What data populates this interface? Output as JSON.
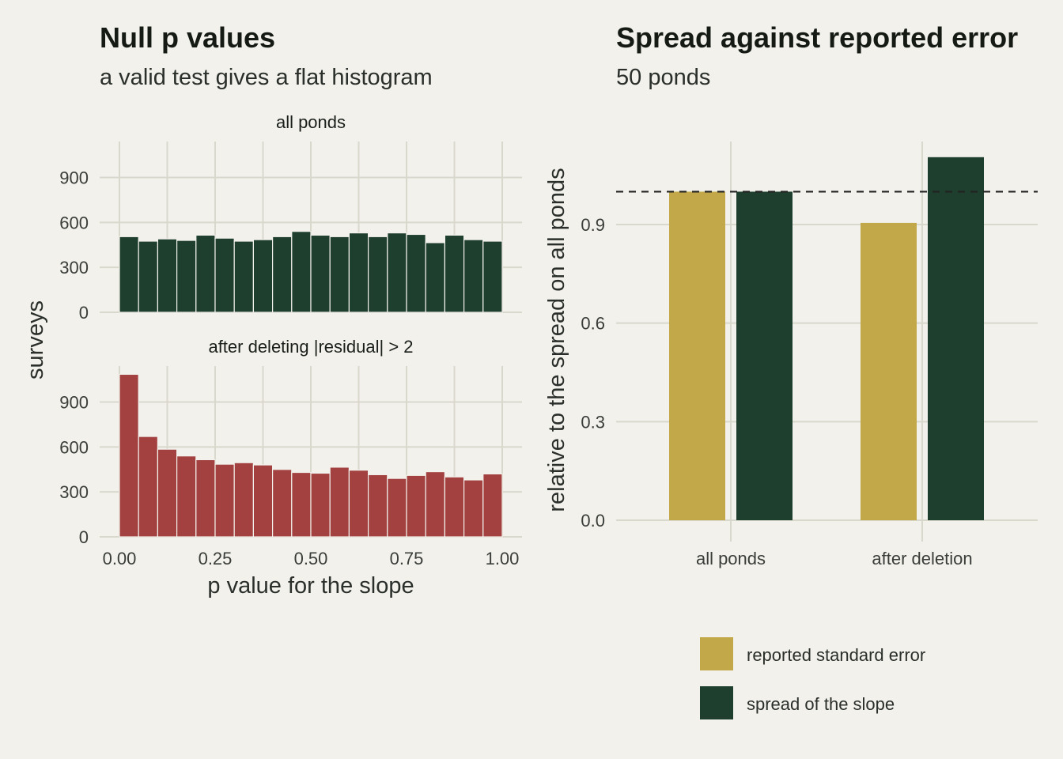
{
  "left_panel": {
    "title": "Null p values",
    "subtitle": "a valid test gives a flat histogram",
    "ylabel": "surveys",
    "xlabel": "p value for the slope"
  },
  "right_panel": {
    "title": "Spread against reported error",
    "subtitle": "50 ponds",
    "ylabel": "relative to the spread on all ponds"
  },
  "colors": {
    "background": "#f2f1eb",
    "grid": "#d9d8cc",
    "histogram_all": "#1f3f2e",
    "histogram_deleted": "#a34040",
    "reported_se": "#c2a848",
    "spread_slope": "#1f3f2e",
    "reference_line": "#222222"
  },
  "chart_data": [
    {
      "type": "bar",
      "panel": "all ponds",
      "bin_width": 0.05,
      "x": [
        0.025,
        0.075,
        0.125,
        0.175,
        0.225,
        0.275,
        0.325,
        0.375,
        0.425,
        0.475,
        0.525,
        0.575,
        0.625,
        0.675,
        0.725,
        0.775,
        0.825,
        0.875,
        0.925,
        0.975
      ],
      "values": [
        505,
        475,
        490,
        480,
        515,
        495,
        475,
        485,
        505,
        540,
        515,
        505,
        530,
        505,
        530,
        520,
        465,
        515,
        485,
        475
      ],
      "xlabel": "p value for the slope",
      "ylabel": "surveys",
      "xlim": [
        0,
        1
      ],
      "ylim": [
        0,
        1140
      ],
      "x_ticks": [
        "0.00",
        "0.25",
        "0.50",
        "0.75",
        "1.00"
      ],
      "y_ticks": [
        "0",
        "300",
        "600",
        "900"
      ],
      "color": "#1f3f2e"
    },
    {
      "type": "bar",
      "panel": "after deleting |residual| > 2",
      "bin_width": 0.05,
      "x": [
        0.025,
        0.075,
        0.125,
        0.175,
        0.225,
        0.275,
        0.325,
        0.375,
        0.425,
        0.475,
        0.525,
        0.575,
        0.625,
        0.675,
        0.725,
        0.775,
        0.825,
        0.875,
        0.925,
        0.975
      ],
      "values": [
        1085,
        670,
        585,
        540,
        515,
        485,
        495,
        480,
        450,
        430,
        425,
        465,
        445,
        415,
        390,
        410,
        435,
        400,
        380,
        420
      ],
      "xlabel": "p value for the slope",
      "ylabel": "surveys",
      "xlim": [
        0,
        1
      ],
      "ylim": [
        0,
        1140
      ],
      "x_ticks": [
        "0.00",
        "0.25",
        "0.50",
        "0.75",
        "1.00"
      ],
      "y_ticks": [
        "0",
        "300",
        "600",
        "900"
      ],
      "color": "#a34040"
    },
    {
      "type": "bar",
      "panel": "Spread against reported error",
      "categories": [
        "all ponds",
        "after deletion"
      ],
      "series": [
        {
          "name": "reported standard error",
          "values": [
            1.0,
            0.905
          ],
          "color": "#c2a848"
        },
        {
          "name": "spread of the slope",
          "values": [
            1.0,
            1.105
          ],
          "color": "#1f3f2e"
        }
      ],
      "reference_line": 1.0,
      "ylabel": "relative to the spread on all ponds",
      "ylim": [
        0,
        1.13
      ],
      "y_ticks": [
        "0.0",
        "0.3",
        "0.6",
        "0.9"
      ],
      "legend_position": "bottom-right"
    }
  ]
}
